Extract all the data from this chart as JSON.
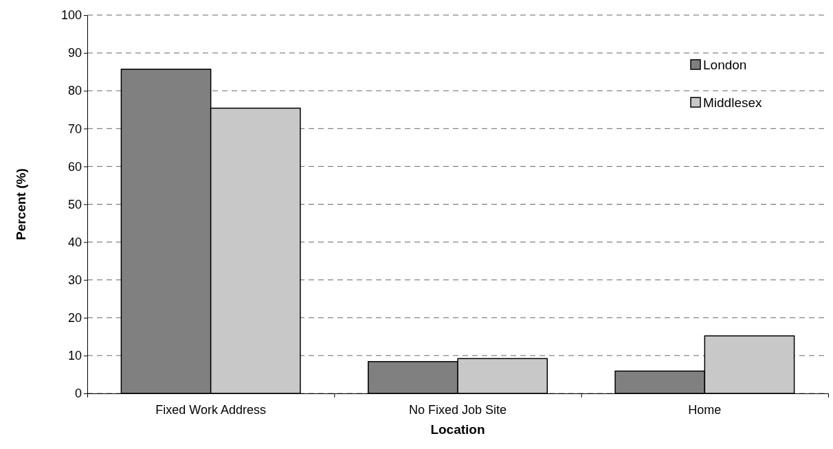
{
  "chart_data": {
    "type": "bar",
    "xlabel": "Location",
    "ylabel": "Percent (%)",
    "categories": [
      "Fixed Work Address",
      "No Fixed Job Site",
      "Home"
    ],
    "series": [
      {
        "name": "London",
        "color": "#808080",
        "values": [
          85.7,
          8.4,
          5.9
        ]
      },
      {
        "name": "Middlesex",
        "color": "#c8c8c8",
        "values": [
          75.4,
          9.2,
          15.2
        ]
      }
    ],
    "ylim": [
      0,
      100
    ],
    "yticks": [
      0,
      10,
      20,
      30,
      40,
      50,
      60,
      70,
      80,
      90,
      100
    ],
    "grid": "y",
    "legend": "top right"
  }
}
